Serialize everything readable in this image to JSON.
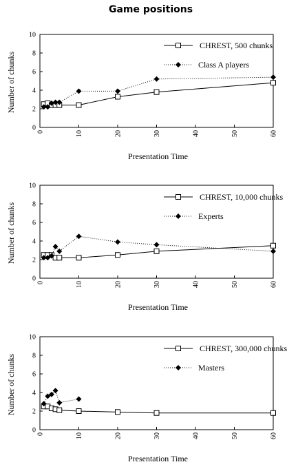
{
  "page_title": "Game positions",
  "chart_data": [
    {
      "type": "line",
      "xlabel": "Presentation Time",
      "ylabel": "Number of chunks",
      "xlim": [
        0,
        60
      ],
      "ylim": [
        0,
        10
      ],
      "xticks": [
        "0",
        "10",
        "20",
        "30",
        "40",
        "50",
        "60"
      ],
      "yticks": [
        "0",
        "2",
        "4",
        "6",
        "8",
        "10"
      ],
      "legend_position": "top-right",
      "series": [
        {
          "name": "CHREST, 500 chunks",
          "marker": "square",
          "line": "solid",
          "x": [
            1,
            2,
            3,
            4,
            5,
            10,
            20,
            30,
            60
          ],
          "y": [
            2.5,
            2.6,
            2.4,
            2.4,
            2.4,
            2.4,
            3.3,
            3.8,
            4.8
          ]
        },
        {
          "name": "Class A players",
          "marker": "diamond",
          "line": "dotted",
          "x": [
            1,
            2,
            3,
            4,
            5,
            10,
            20,
            30,
            60
          ],
          "y": [
            2.2,
            2.2,
            2.6,
            2.7,
            2.7,
            3.9,
            3.9,
            5.2,
            5.4
          ]
        }
      ]
    },
    {
      "type": "line",
      "xlabel": "Presentation Time",
      "ylabel": "Number of chunks",
      "xlim": [
        0,
        60
      ],
      "ylim": [
        0,
        10
      ],
      "xticks": [
        "0",
        "10",
        "20",
        "30",
        "40",
        "50",
        "60"
      ],
      "yticks": [
        "0",
        "2",
        "4",
        "6",
        "8",
        "10"
      ],
      "legend_position": "top-right",
      "series": [
        {
          "name": "CHREST, 10,000 chunks",
          "marker": "square",
          "line": "solid",
          "x": [
            1,
            2,
            3,
            4,
            5,
            10,
            20,
            30,
            60
          ],
          "y": [
            2.5,
            2.5,
            2.5,
            2.2,
            2.2,
            2.2,
            2.5,
            2.9,
            3.5
          ]
        },
        {
          "name": "Experts",
          "marker": "diamond",
          "line": "dotted",
          "x": [
            1,
            2,
            3,
            4,
            5,
            10,
            20,
            30,
            60
          ],
          "y": [
            2.2,
            2.2,
            2.4,
            3.4,
            2.9,
            4.5,
            3.9,
            3.6,
            2.9
          ]
        }
      ]
    },
    {
      "type": "line",
      "xlabel": "Presentation Time",
      "ylabel": "Number of chunks",
      "xlim": [
        0,
        60
      ],
      "ylim": [
        0,
        10
      ],
      "xticks": [
        "0",
        "10",
        "20",
        "30",
        "40",
        "50",
        "60"
      ],
      "yticks": [
        "0",
        "2",
        "4",
        "6",
        "8",
        "10"
      ],
      "legend_position": "top-right",
      "series": [
        {
          "name": "CHREST, 300,000 chunks",
          "marker": "square",
          "line": "solid",
          "x": [
            1,
            2,
            3,
            4,
            5,
            10,
            20,
            30,
            60
          ],
          "y": [
            2.5,
            2.5,
            2.3,
            2.2,
            2.1,
            2.0,
            1.9,
            1.8,
            1.8
          ]
        },
        {
          "name": "Masters",
          "marker": "diamond",
          "line": "dotted",
          "x": [
            1,
            2,
            3,
            4,
            5,
            10
          ],
          "y": [
            2.8,
            3.6,
            3.8,
            4.2,
            2.9,
            3.3
          ]
        }
      ]
    }
  ]
}
